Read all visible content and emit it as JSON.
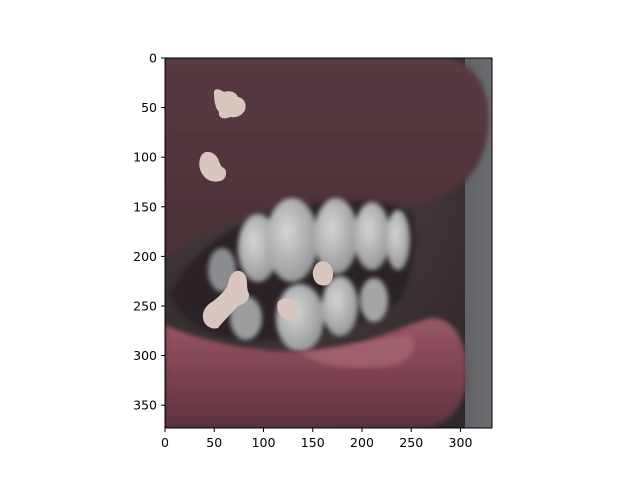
{
  "chart_data": {
    "type": "image",
    "title": "",
    "xlabel": "",
    "ylabel": "",
    "xlim": [
      0,
      332
    ],
    "ylim": [
      373,
      0
    ],
    "x_ticks": [
      "0",
      "50",
      "100",
      "150",
      "200",
      "250",
      "300"
    ],
    "y_ticks": [
      "0",
      "50",
      "100",
      "150",
      "200",
      "250",
      "300",
      "350"
    ],
    "image_content": "close-up side profile of a mouth with slightly parted lips showing upper and lower teeth, with several pale spot marks overlaid on the image"
  },
  "colors": {
    "background": "#ffffff",
    "axis": "#000000",
    "skin": "#3f3535",
    "lip": "#8a4a58",
    "teeth": "#b8b9ba",
    "marks": "#d8c6bf"
  }
}
